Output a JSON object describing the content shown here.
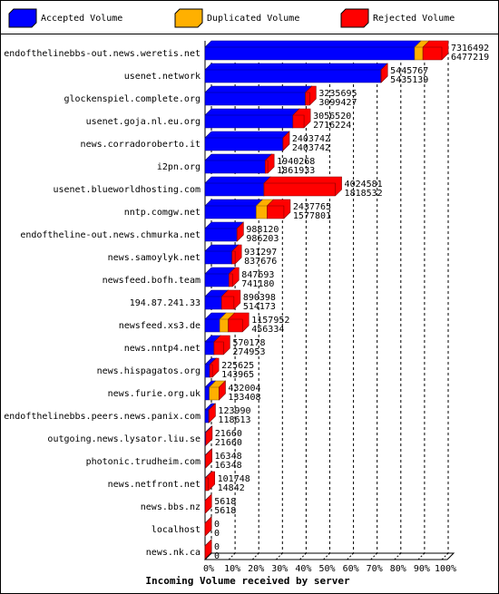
{
  "chart_data": {
    "type": "bar",
    "orientation": "horizontal",
    "stacked": true,
    "title": "Incoming Volume received by server",
    "categories": [
      "endofthelinebbs-out.news.weretis.net",
      "usenet.network",
      "glockenspiel.complete.org",
      "usenet.goja.nl.eu.org",
      "news.corradoroberto.it",
      "i2pn.org",
      "usenet.blueworldhosting.com",
      "nntp.comgw.net",
      "endoftheline-out.news.chmurka.net",
      "news.samoylyk.net",
      "newsfeed.bofh.team",
      "194.87.241.33",
      "newsfeed.xs3.de",
      "news.nntp4.net",
      "news.hispagatos.org",
      "news.furie.org.uk",
      "endofthelinebbs.peers.news.panix.com",
      "outgoing.news.lysator.liu.se",
      "photonic.trudheim.com",
      "news.netfront.net",
      "news.bbs.nz",
      "localhost",
      "news.nk.ca"
    ],
    "series": [
      {
        "name": "Accepted Volume",
        "color": "#0000ff",
        "values": [
          88.5,
          74.3,
          42.4,
          37.1,
          32.9,
          25.4,
          24.9,
          21.6,
          13.5,
          11.4,
          10.1,
          7.0,
          6.2,
          3.8,
          2.0,
          1.8,
          1.6,
          0.3,
          0.2,
          0.2,
          0.08,
          0,
          0
        ]
      },
      {
        "name": "Duplicated Volume",
        "color": "#ffb000",
        "values": [
          3.5,
          0,
          0,
          0,
          0,
          0,
          0,
          4.6,
          0,
          0,
          0,
          0,
          3.6,
          0,
          0,
          4.1,
          0,
          0,
          0,
          0,
          0,
          0,
          0
        ]
      },
      {
        "name": "Rejected Volume",
        "color": "#ff0000",
        "values": [
          8.0,
          0.1,
          1.8,
          4.7,
          0,
          1.1,
          30.1,
          7.1,
          0.03,
          1.3,
          1.5,
          5.2,
          6.0,
          4.0,
          1.1,
          0,
          0.1,
          0,
          0,
          1.2,
          0,
          0,
          0
        ]
      }
    ],
    "offered_volume": [
      7316492,
      5445767,
      3235695,
      3056520,
      2403742,
      1940268,
      4024581,
      2437765,
      988120,
      931297,
      847693,
      890398,
      1157952,
      570178,
      225625,
      432004,
      123990,
      21660,
      16348,
      101748,
      5618,
      0,
      0
    ],
    "accepted_volume": [
      6477219,
      5435139,
      3099427,
      2716224,
      2403742,
      1861933,
      1818532,
      1577801,
      986203,
      837676,
      741180,
      514173,
      456334,
      274953,
      143965,
      133408,
      118613,
      21660,
      16348,
      14842,
      5618,
      0,
      0
    ],
    "xlim": [
      0,
      100
    ],
    "xticks": [
      {
        "value": 0,
        "label": "0%"
      },
      {
        "value": 10,
        "label": "10%"
      },
      {
        "value": 20,
        "label": "20%"
      },
      {
        "value": 30,
        "label": "30%"
      },
      {
        "value": 40,
        "label": "40%"
      },
      {
        "value": 50,
        "label": "50%"
      },
      {
        "value": 60,
        "label": "60%"
      },
      {
        "value": 70,
        "label": "70%"
      },
      {
        "value": 80,
        "label": "80%"
      },
      {
        "value": 90,
        "label": "90%"
      },
      {
        "value": 100,
        "label": "100%"
      }
    ],
    "grid": true
  }
}
